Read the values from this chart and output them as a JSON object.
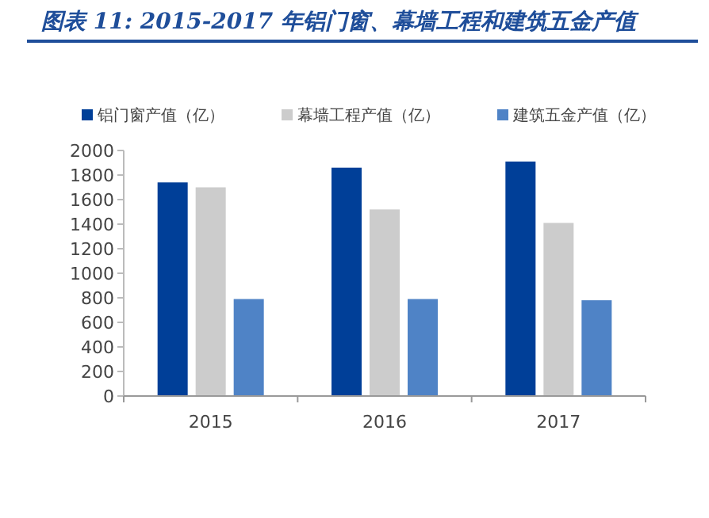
{
  "chart_data": {
    "type": "bar",
    "title": "图表 11:  2015-2017 年铝门窗、幕墙工程和建筑五金产值",
    "categories": [
      "2015",
      "2016",
      "2017"
    ],
    "series": [
      {
        "name": "铝门窗产值（亿）",
        "color": "#003f98",
        "values": [
          1740,
          1860,
          1910
        ]
      },
      {
        "name": "幕墙工程产值（亿）",
        "color": "#cccccc",
        "values": [
          1700,
          1520,
          1410
        ]
      },
      {
        "name": "建筑五金产值（亿）",
        "color": "#4f83c6",
        "values": [
          790,
          790,
          780
        ]
      }
    ],
    "ylim": [
      0,
      2000
    ],
    "yticks": [
      0,
      200,
      400,
      600,
      800,
      1000,
      1200,
      1400,
      1600,
      1800,
      2000
    ],
    "grid": false,
    "legend": "top"
  }
}
